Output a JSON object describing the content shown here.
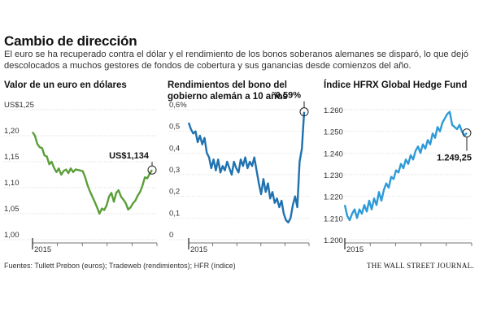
{
  "header": {
    "title": "Cambio de dirección",
    "subtitle": "El euro se ha recuperado contra el dólar y el rendimiento de los bonos soberanos alemanes se disparó, lo que dejó descolocados a muchos gestores de fondos de cobertura y sus ganancias desde comienzos del año."
  },
  "footer": {
    "sources": "Fuentes: Tullett Prebon (euros); Tradeweb (rendimientos); HFR (índice)",
    "brand": "THE WALL STREET JOURNAL."
  },
  "chart_data": [
    {
      "type": "line",
      "title": "Valor de un euro en dólares",
      "color": "#5a9e3a",
      "x_label_first": "2015",
      "ylim": [
        1.0,
        1.25
      ],
      "yticks": [
        1.0,
        1.05,
        1.1,
        1.15,
        1.2,
        1.25
      ],
      "ytick_labels": [
        "1,00",
        "1,05",
        "1,10",
        "1,15",
        "1,20",
        "US$1,25"
      ],
      "callout": "US$1,134",
      "last_value": 1.134,
      "values": [
        1.207,
        1.2,
        1.184,
        1.178,
        1.176,
        1.162,
        1.16,
        1.145,
        1.15,
        1.138,
        1.13,
        1.137,
        1.125,
        1.132,
        1.135,
        1.128,
        1.137,
        1.13,
        1.135,
        1.134,
        1.133,
        1.132,
        1.12,
        1.105,
        1.093,
        1.083,
        1.073,
        1.062,
        1.05,
        1.06,
        1.057,
        1.066,
        1.083,
        1.09,
        1.073,
        1.09,
        1.095,
        1.083,
        1.077,
        1.07,
        1.058,
        1.062,
        1.07,
        1.075,
        1.085,
        1.092,
        1.104,
        1.12,
        1.118,
        1.127,
        1.134
      ]
    },
    {
      "type": "line",
      "title": "Rendimientos del bono del gobierno alemán a 10 años",
      "color": "#1f72b0",
      "x_label_first": "2015",
      "ylim": [
        0,
        0.6
      ],
      "yticks": [
        0,
        0.1,
        0.2,
        0.3,
        0.4,
        0.5,
        0.6
      ],
      "ytick_labels": [
        "0",
        "0,1",
        "0,2",
        "0,3",
        "0,4",
        "0,5",
        "0,6%"
      ],
      "callout": "0,59%",
      "last_value": 0.59,
      "values": [
        0.54,
        0.51,
        0.49,
        0.5,
        0.45,
        0.48,
        0.44,
        0.47,
        0.4,
        0.38,
        0.33,
        0.37,
        0.32,
        0.37,
        0.31,
        0.34,
        0.32,
        0.36,
        0.33,
        0.3,
        0.36,
        0.33,
        0.31,
        0.37,
        0.34,
        0.38,
        0.33,
        0.36,
        0.34,
        0.38,
        0.32,
        0.26,
        0.21,
        0.28,
        0.22,
        0.26,
        0.19,
        0.22,
        0.17,
        0.19,
        0.15,
        0.18,
        0.12,
        0.09,
        0.08,
        0.1,
        0.16,
        0.2,
        0.15,
        0.36,
        0.42,
        0.59
      ]
    },
    {
      "type": "line",
      "title": "Índice HFRX Global Hedge Fund",
      "color": "#2e9ad8",
      "x_label_first": "2015",
      "ylim": [
        1200,
        1260
      ],
      "yticks": [
        1200,
        1210,
        1220,
        1230,
        1240,
        1250,
        1260
      ],
      "ytick_labels": [
        "1.200",
        "1.210",
        "1.220",
        "1.230",
        "1.240",
        "1.250",
        "1.260"
      ],
      "callout": "1.249,25",
      "last_value": 1249.25,
      "values": [
        1216,
        1211,
        1209,
        1212,
        1214,
        1210,
        1214,
        1212,
        1216,
        1213,
        1218,
        1214,
        1219,
        1216,
        1222,
        1218,
        1223,
        1226,
        1224,
        1229,
        1228,
        1232,
        1231,
        1235,
        1233,
        1237,
        1235,
        1239,
        1237,
        1241,
        1243,
        1240,
        1244,
        1242,
        1246,
        1244,
        1249,
        1247,
        1252,
        1250,
        1254,
        1256,
        1258,
        1259,
        1253,
        1252,
        1251,
        1253,
        1250,
        1248,
        1249.25
      ]
    }
  ]
}
